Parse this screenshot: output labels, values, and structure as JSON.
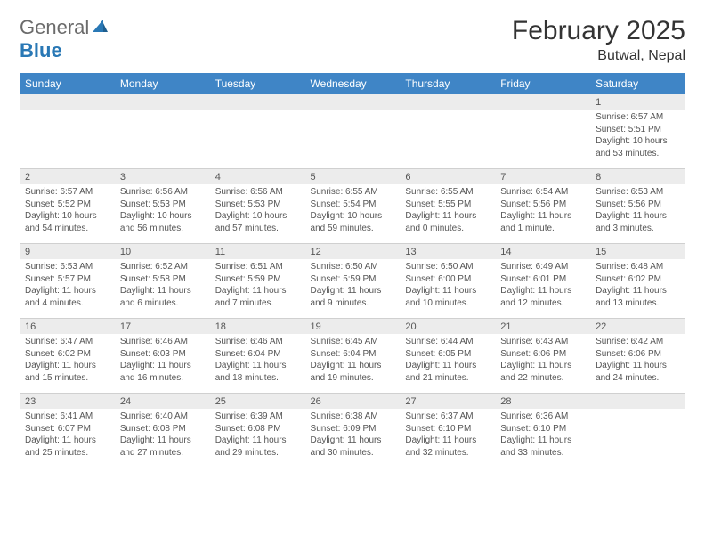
{
  "brand": {
    "text1": "General",
    "text2": "Blue"
  },
  "title": "February 2025",
  "location": "Butwal, Nepal",
  "colors": {
    "header_bg": "#3f85c6",
    "header_fg": "#ffffff",
    "daynum_bg": "#ececec",
    "text": "#555555",
    "brand_gray": "#6b6b6b",
    "brand_blue": "#2978b5"
  },
  "weekdays": [
    "Sunday",
    "Monday",
    "Tuesday",
    "Wednesday",
    "Thursday",
    "Friday",
    "Saturday"
  ],
  "weeks": [
    {
      "nums": [
        "",
        "",
        "",
        "",
        "",
        "",
        "1"
      ],
      "details": [
        [],
        [],
        [],
        [],
        [],
        [],
        [
          "Sunrise: 6:57 AM",
          "Sunset: 5:51 PM",
          "Daylight: 10 hours",
          "and 53 minutes."
        ]
      ]
    },
    {
      "nums": [
        "2",
        "3",
        "4",
        "5",
        "6",
        "7",
        "8"
      ],
      "details": [
        [
          "Sunrise: 6:57 AM",
          "Sunset: 5:52 PM",
          "Daylight: 10 hours",
          "and 54 minutes."
        ],
        [
          "Sunrise: 6:56 AM",
          "Sunset: 5:53 PM",
          "Daylight: 10 hours",
          "and 56 minutes."
        ],
        [
          "Sunrise: 6:56 AM",
          "Sunset: 5:53 PM",
          "Daylight: 10 hours",
          "and 57 minutes."
        ],
        [
          "Sunrise: 6:55 AM",
          "Sunset: 5:54 PM",
          "Daylight: 10 hours",
          "and 59 minutes."
        ],
        [
          "Sunrise: 6:55 AM",
          "Sunset: 5:55 PM",
          "Daylight: 11 hours",
          "and 0 minutes."
        ],
        [
          "Sunrise: 6:54 AM",
          "Sunset: 5:56 PM",
          "Daylight: 11 hours",
          "and 1 minute."
        ],
        [
          "Sunrise: 6:53 AM",
          "Sunset: 5:56 PM",
          "Daylight: 11 hours",
          "and 3 minutes."
        ]
      ]
    },
    {
      "nums": [
        "9",
        "10",
        "11",
        "12",
        "13",
        "14",
        "15"
      ],
      "details": [
        [
          "Sunrise: 6:53 AM",
          "Sunset: 5:57 PM",
          "Daylight: 11 hours",
          "and 4 minutes."
        ],
        [
          "Sunrise: 6:52 AM",
          "Sunset: 5:58 PM",
          "Daylight: 11 hours",
          "and 6 minutes."
        ],
        [
          "Sunrise: 6:51 AM",
          "Sunset: 5:59 PM",
          "Daylight: 11 hours",
          "and 7 minutes."
        ],
        [
          "Sunrise: 6:50 AM",
          "Sunset: 5:59 PM",
          "Daylight: 11 hours",
          "and 9 minutes."
        ],
        [
          "Sunrise: 6:50 AM",
          "Sunset: 6:00 PM",
          "Daylight: 11 hours",
          "and 10 minutes."
        ],
        [
          "Sunrise: 6:49 AM",
          "Sunset: 6:01 PM",
          "Daylight: 11 hours",
          "and 12 minutes."
        ],
        [
          "Sunrise: 6:48 AM",
          "Sunset: 6:02 PM",
          "Daylight: 11 hours",
          "and 13 minutes."
        ]
      ]
    },
    {
      "nums": [
        "16",
        "17",
        "18",
        "19",
        "20",
        "21",
        "22"
      ],
      "details": [
        [
          "Sunrise: 6:47 AM",
          "Sunset: 6:02 PM",
          "Daylight: 11 hours",
          "and 15 minutes."
        ],
        [
          "Sunrise: 6:46 AM",
          "Sunset: 6:03 PM",
          "Daylight: 11 hours",
          "and 16 minutes."
        ],
        [
          "Sunrise: 6:46 AM",
          "Sunset: 6:04 PM",
          "Daylight: 11 hours",
          "and 18 minutes."
        ],
        [
          "Sunrise: 6:45 AM",
          "Sunset: 6:04 PM",
          "Daylight: 11 hours",
          "and 19 minutes."
        ],
        [
          "Sunrise: 6:44 AM",
          "Sunset: 6:05 PM",
          "Daylight: 11 hours",
          "and 21 minutes."
        ],
        [
          "Sunrise: 6:43 AM",
          "Sunset: 6:06 PM",
          "Daylight: 11 hours",
          "and 22 minutes."
        ],
        [
          "Sunrise: 6:42 AM",
          "Sunset: 6:06 PM",
          "Daylight: 11 hours",
          "and 24 minutes."
        ]
      ]
    },
    {
      "nums": [
        "23",
        "24",
        "25",
        "26",
        "27",
        "28",
        ""
      ],
      "details": [
        [
          "Sunrise: 6:41 AM",
          "Sunset: 6:07 PM",
          "Daylight: 11 hours",
          "and 25 minutes."
        ],
        [
          "Sunrise: 6:40 AM",
          "Sunset: 6:08 PM",
          "Daylight: 11 hours",
          "and 27 minutes."
        ],
        [
          "Sunrise: 6:39 AM",
          "Sunset: 6:08 PM",
          "Daylight: 11 hours",
          "and 29 minutes."
        ],
        [
          "Sunrise: 6:38 AM",
          "Sunset: 6:09 PM",
          "Daylight: 11 hours",
          "and 30 minutes."
        ],
        [
          "Sunrise: 6:37 AM",
          "Sunset: 6:10 PM",
          "Daylight: 11 hours",
          "and 32 minutes."
        ],
        [
          "Sunrise: 6:36 AM",
          "Sunset: 6:10 PM",
          "Daylight: 11 hours",
          "and 33 minutes."
        ],
        []
      ]
    }
  ]
}
